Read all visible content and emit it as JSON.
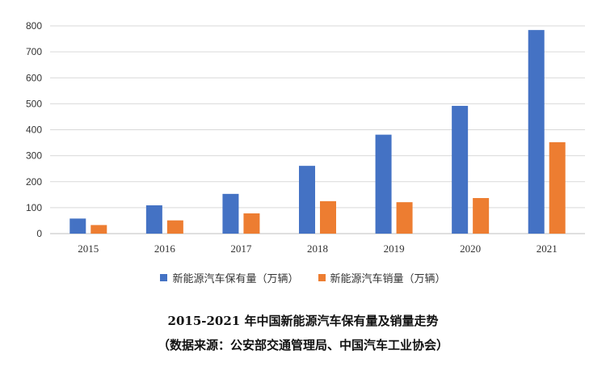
{
  "chart_data": {
    "type": "bar",
    "title": "2015-2021 年中国新能源汽车保有量及销量走势",
    "subtitle": "（数据来源：公安部交通管理局、中国汽车工业协会）",
    "categories": [
      "2015",
      "2016",
      "2017",
      "2018",
      "2019",
      "2020",
      "2021"
    ],
    "series": [
      {
        "name": "新能源汽车保有量（万辆）",
        "color": "#4472C4",
        "values": [
          58,
          109,
          153,
          261,
          381,
          492,
          784
        ]
      },
      {
        "name": "新能源汽车销量（万辆）",
        "color": "#ED7D31",
        "values": [
          33,
          51,
          78,
          125,
          121,
          137,
          352
        ]
      }
    ],
    "ylim": [
      0,
      800
    ],
    "yticks": [
      0,
      100,
      200,
      300,
      400,
      500,
      600,
      700,
      800
    ],
    "grid": true,
    "legend_position": "bottom"
  }
}
